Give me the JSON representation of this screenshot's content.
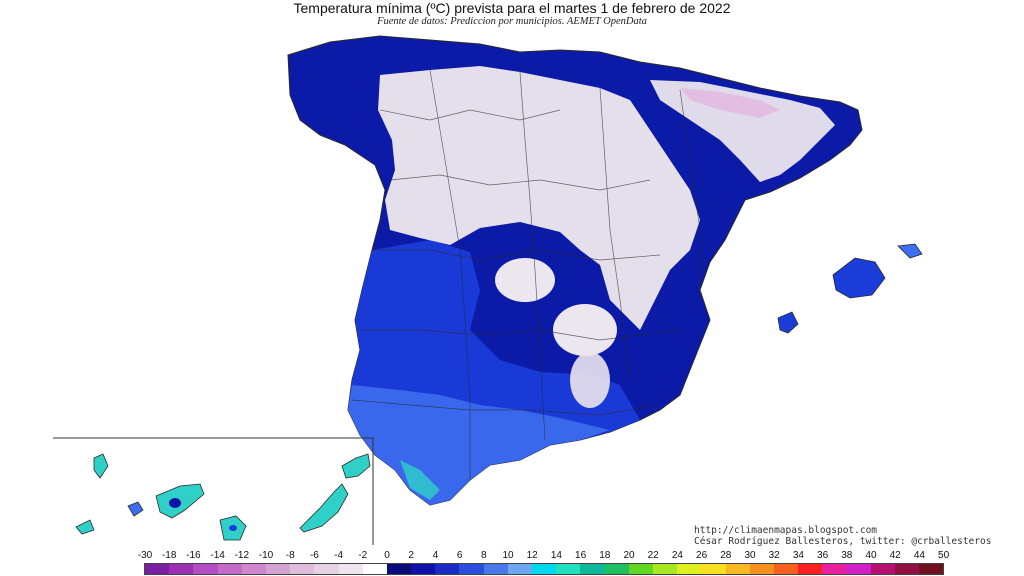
{
  "title": "Temperatura mínima (ºC) prevista para el martes 1 de febrero de 2022",
  "subtitle": "Fuente de datos: Prediccion por municipios. AEMET OpenData",
  "credits": {
    "line1": "http://climaenmapas.blogspot.com",
    "line2": "César Rodríguez Ballesteros, twitter: @crballesteros"
  },
  "legend": {
    "labels": [
      "-30",
      "-18",
      "-16",
      "-14",
      "-12",
      "-10",
      "-8",
      "-6",
      "-4",
      "-2",
      "0",
      "2",
      "4",
      "6",
      "8",
      "10",
      "12",
      "14",
      "16",
      "18",
      "20",
      "22",
      "24",
      "26",
      "28",
      "30",
      "32",
      "34",
      "36",
      "38",
      "40",
      "42",
      "44",
      "50"
    ],
    "colors": [
      "#7a1fa2",
      "#9c2fb5",
      "#b44cc4",
      "#c46ac9",
      "#cf88cf",
      "#d6a2d2",
      "#ddbcdc",
      "#e5d3e3",
      "#eee5ee",
      "#ffffff",
      "#0a0a7a",
      "#1010a8",
      "#1a2ac8",
      "#2a4fdc",
      "#4a78ea",
      "#6fa6f2",
      "#00d8f0",
      "#20e0c0",
      "#10b89a",
      "#20c060",
      "#60d820",
      "#a8e820",
      "#e0ef20",
      "#f8e020",
      "#f8b820",
      "#f89020",
      "#f86020",
      "#f82020",
      "#e820a0",
      "#d020c8",
      "#b81070",
      "#901040",
      "#701020"
    ]
  },
  "regions": {
    "peninsula": "Península",
    "canarias": "Islas Canarias",
    "baleares": "Islas Baleares"
  },
  "colors": {
    "deep_blue": "#0c1aa8",
    "mid_blue": "#1a3cd8",
    "light_blue": "#3d6ef0",
    "pale": "#ece6ee",
    "cyan": "#2fd0c8",
    "border": "#2a2a2a"
  }
}
